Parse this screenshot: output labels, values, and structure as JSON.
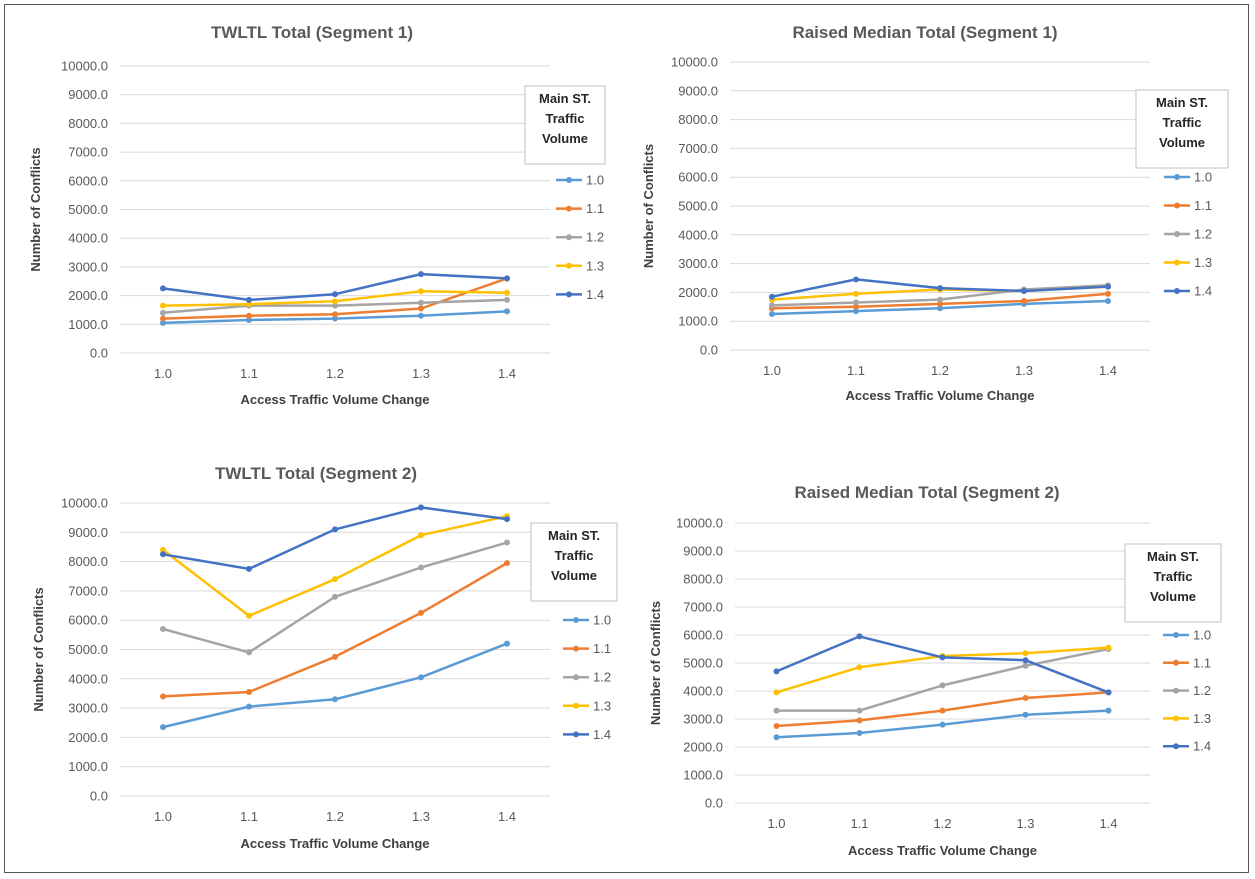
{
  "legend_title_lines": [
    "Main ST.",
    "Traffic",
    "Volume"
  ],
  "colors": {
    "1.0": "#5b9bd5",
    "1.1": "#ed7d31",
    "1.2": "#a5a5a5",
    "1.3": "#ffc000",
    "1.4": "#4472c4"
  },
  "chart_data": [
    {
      "type": "line",
      "title": "TWLTL Total (Segment 1)",
      "xlabel": "Access Traffic Volume Change",
      "ylabel": "Number of Conflicts",
      "ylim": [
        0,
        10000
      ],
      "ytick_step": 1000,
      "categories": [
        "1.0",
        "1.1",
        "1.2",
        "1.3",
        "1.4"
      ],
      "legend_title": "Main ST. Traffic Volume",
      "series": [
        {
          "name": "1.0",
          "values": [
            1050,
            1150,
            1200,
            1300,
            1450
          ]
        },
        {
          "name": "1.1",
          "values": [
            1200,
            1300,
            1350,
            1550,
            2600
          ]
        },
        {
          "name": "1.2",
          "values": [
            1400,
            1650,
            1650,
            1750,
            1850
          ]
        },
        {
          "name": "1.3",
          "values": [
            1650,
            1700,
            1800,
            2150,
            2100
          ]
        },
        {
          "name": "1.4",
          "values": [
            2250,
            1850,
            2050,
            2750,
            2600
          ]
        }
      ]
    },
    {
      "type": "line",
      "title": "Raised Median Total (Segment 1)",
      "xlabel": "Access Traffic Volume Change",
      "ylabel": "Number of Conflicts",
      "ylim": [
        0,
        10000
      ],
      "ytick_step": 1000,
      "categories": [
        "1.0",
        "1.1",
        "1.2",
        "1.3",
        "1.4"
      ],
      "legend_title": "Main ST. Traffic Volume",
      "series": [
        {
          "name": "1.0",
          "values": [
            1250,
            1350,
            1450,
            1600,
            1700
          ]
        },
        {
          "name": "1.1",
          "values": [
            1450,
            1500,
            1600,
            1700,
            1950
          ]
        },
        {
          "name": "1.2",
          "values": [
            1550,
            1650,
            1750,
            2100,
            2250
          ]
        },
        {
          "name": "1.3",
          "values": [
            1750,
            1950,
            2100,
            2050,
            2200
          ]
        },
        {
          "name": "1.4",
          "values": [
            1850,
            2450,
            2150,
            2050,
            2200
          ]
        }
      ]
    },
    {
      "type": "line",
      "title": "TWLTL Total (Segment 2)",
      "xlabel": "Access Traffic Volume Change",
      "ylabel": "Number of Conflicts",
      "ylim": [
        0,
        10000
      ],
      "ytick_step": 1000,
      "categories": [
        "1.0",
        "1.1",
        "1.2",
        "1.3",
        "1.4"
      ],
      "legend_title": "Main ST. Traffic Volume",
      "series": [
        {
          "name": "1.0",
          "values": [
            2350,
            3050,
            3300,
            4050,
            5200
          ]
        },
        {
          "name": "1.1",
          "values": [
            3400,
            3550,
            4750,
            6250,
            7950
          ]
        },
        {
          "name": "1.2",
          "values": [
            5700,
            4900,
            6800,
            7800,
            8650
          ]
        },
        {
          "name": "1.3",
          "values": [
            8400,
            6150,
            7400,
            8900,
            9550
          ]
        },
        {
          "name": "1.4",
          "values": [
            8250,
            7750,
            9100,
            9850,
            9450
          ]
        }
      ]
    },
    {
      "type": "line",
      "title": "Raised Median Total (Segment 2)",
      "xlabel": "Access Traffic Volume Change",
      "ylabel": "Number of Conflicts",
      "ylim": [
        0,
        10000
      ],
      "ytick_step": 1000,
      "categories": [
        "1.0",
        "1.1",
        "1.2",
        "1.3",
        "1.4"
      ],
      "legend_title": "Main ST. Traffic Volume",
      "series": [
        {
          "name": "1.0",
          "values": [
            2350,
            2500,
            2800,
            3150,
            3300
          ]
        },
        {
          "name": "1.1",
          "values": [
            2750,
            2950,
            3300,
            3750,
            3950
          ]
        },
        {
          "name": "1.2",
          "values": [
            3300,
            3300,
            4200,
            4900,
            5500
          ]
        },
        {
          "name": "1.3",
          "values": [
            3950,
            4850,
            5250,
            5350,
            5550
          ]
        },
        {
          "name": "1.4",
          "values": [
            4700,
            5950,
            5200,
            5100,
            3950
          ]
        }
      ]
    }
  ]
}
